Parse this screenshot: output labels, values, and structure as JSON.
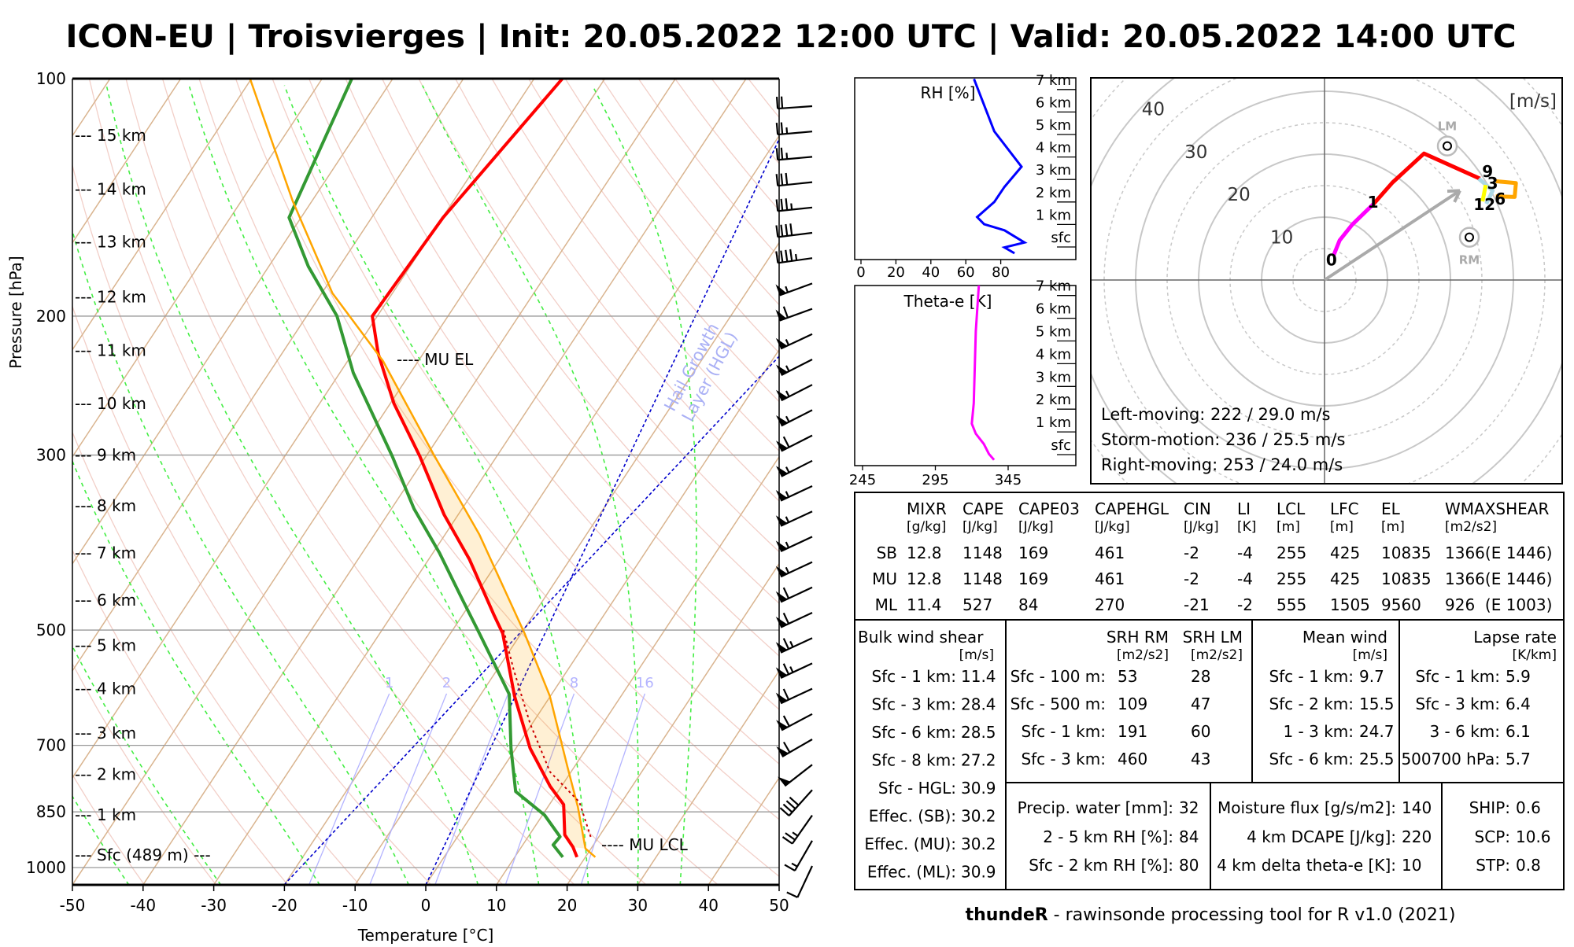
{
  "title": "ICON-EU | Troisvierges | Init: 20.05.2022 12:00 UTC | Valid: 20.05.2022 14:00 UTC",
  "chart_data": [
    {
      "type": "line",
      "name": "skew-t",
      "title": "",
      "xlabel": "Temperature [°C]",
      "ylabel": "Pressure [hPa]",
      "xlim": [
        -50,
        50
      ],
      "ylim": [
        1052,
        100
      ],
      "xticks": [
        -50,
        -40,
        -30,
        -20,
        -10,
        0,
        10,
        20,
        30,
        40,
        50
      ],
      "xtick_labels": [
        "-50",
        "-40",
        "-30",
        "-20",
        "-10",
        "0",
        "10",
        "20",
        "30",
        "40",
        "50"
      ],
      "yticks": [
        100,
        200,
        300,
        500,
        700,
        850,
        1000
      ],
      "ytick_labels": [
        "100",
        "200",
        "300",
        "500",
        "700",
        "850",
        "1000"
      ],
      "series": [
        {
          "name": "temperature",
          "color": "#ff0000",
          "points": [
            [
              100,
              -56.0
            ],
            [
              150,
              -59.9
            ],
            [
              200,
              -60.7
            ],
            [
              223,
              -56.4
            ],
            [
              258,
              -49.5
            ],
            [
              301,
              -40.9
            ],
            [
              357,
              -32.0
            ],
            [
              407,
              -24.2
            ],
            [
              479,
              -15.5
            ],
            [
              505,
              -12.6
            ],
            [
              606,
              -5.1
            ],
            [
              706,
              2.0
            ],
            [
              789,
              8.4
            ],
            [
              832,
              12.0
            ],
            [
              909,
              15.0
            ],
            [
              942,
              17.3
            ],
            [
              970,
              18.8
            ]
          ]
        },
        {
          "name": "dewpoint",
          "color": "#339933",
          "points": [
            [
              100,
              -85.8
            ],
            [
              150,
              -81.7
            ],
            [
              173,
              -74.4
            ],
            [
              200,
              -65.7
            ],
            [
              236,
              -58.1
            ],
            [
              301,
              -44.8
            ],
            [
              351,
              -36.8
            ],
            [
              399,
              -29.1
            ],
            [
              458,
              -21.4
            ],
            [
              505,
              -15.9
            ],
            [
              603,
              -6.0
            ],
            [
              706,
              -0.7
            ],
            [
              801,
              4.0
            ],
            [
              858,
              10.3
            ],
            [
              914,
              14.5
            ],
            [
              936,
              14.3
            ],
            [
              970,
              16.8
            ]
          ]
        },
        {
          "name": "mu-parcel",
          "color": "#ffa500",
          "points": [
            [
              100,
              -100.2
            ],
            [
              143,
              -82.7
            ],
            [
              187,
              -68.5
            ],
            [
              228,
              -55.0
            ],
            [
              299,
              -39.2
            ],
            [
              378,
              -25.2
            ],
            [
              505,
              -9.5
            ],
            [
              606,
              -0.1
            ],
            [
              745,
              9.0
            ],
            [
              837,
              14.2
            ],
            [
              946,
              19.2
            ],
            [
              970,
              21.4
            ]
          ]
        },
        {
          "name": "virtual-temperature",
          "color": "#cc0000",
          "points": [
            [
              500,
              -12.8
            ],
            [
              561,
              -7.7
            ],
            [
              657,
              -0.3
            ],
            [
              756,
              7.0
            ],
            [
              826,
              14.0
            ],
            [
              921,
              19.2
            ]
          ]
        }
      ],
      "height_labels": [
        {
          "label": "--- 15 km",
          "p": 118
        },
        {
          "label": "--- 14 km",
          "p": 138
        },
        {
          "label": "--- 13 km",
          "p": 161
        },
        {
          "label": "--- 12 km",
          "p": 189
        },
        {
          "label": "--- 11 km",
          "p": 221
        },
        {
          "label": "--- 10 km",
          "p": 258
        },
        {
          "label": "--- 9 km",
          "p": 300
        },
        {
          "label": "--- 8 km",
          "p": 348
        },
        {
          "label": "--- 7 km",
          "p": 399
        },
        {
          "label": "--- 6 km",
          "p": 458
        },
        {
          "label": "--- 5 km",
          "p": 523
        },
        {
          "label": "--- 4 km",
          "p": 593
        },
        {
          "label": "--- 3 km",
          "p": 675
        },
        {
          "label": "--- 2 km",
          "p": 762
        },
        {
          "label": "--- 1 km",
          "p": 857
        },
        {
          "label": "--- Sfc (489 m) ---",
          "p": 964
        }
      ],
      "annotations": [
        {
          "label": "---- MU EL",
          "p": 227
        },
        {
          "label": "---- MU LCL",
          "p": 936
        }
      ],
      "hgl_label": [
        "Hail Growth",
        "Layer (HGL)"
      ],
      "mixing_ratio_lines": [
        {
          "w": 1,
          "label": "1"
        },
        {
          "w": 2,
          "label": "2"
        },
        {
          "w": 4,
          "label": ""
        },
        {
          "w": 8,
          "label": "8"
        },
        {
          "w": 16,
          "label": "16"
        }
      ],
      "wind_barbs_kt": [
        {
          "dir": 266,
          "speed": 20
        },
        {
          "dir": 265,
          "speed": 25
        },
        {
          "dir": 265,
          "speed": 25
        },
        {
          "dir": 264,
          "speed": 30
        },
        {
          "dir": 264,
          "speed": 35
        },
        {
          "dir": 263,
          "speed": 40
        },
        {
          "dir": 262,
          "speed": 45
        },
        {
          "dir": 250,
          "speed": 55
        },
        {
          "dir": 250,
          "speed": 60
        },
        {
          "dir": 245,
          "speed": 55
        },
        {
          "dir": 243,
          "speed": 55
        },
        {
          "dir": 243,
          "speed": 55
        },
        {
          "dir": 243,
          "speed": 55
        },
        {
          "dir": 243,
          "speed": 60
        },
        {
          "dir": 243,
          "speed": 55
        },
        {
          "dir": 245,
          "speed": 55
        },
        {
          "dir": 245,
          "speed": 55
        },
        {
          "dir": 245,
          "speed": 55
        },
        {
          "dir": 245,
          "speed": 55
        },
        {
          "dir": 245,
          "speed": 60
        },
        {
          "dir": 245,
          "speed": 60
        },
        {
          "dir": 245,
          "speed": 65
        },
        {
          "dir": 245,
          "speed": 65
        },
        {
          "dir": 245,
          "speed": 60
        },
        {
          "dir": 242,
          "speed": 60
        },
        {
          "dir": 240,
          "speed": 60
        },
        {
          "dir": 232,
          "speed": 50
        },
        {
          "dir": 222,
          "speed": 40
        },
        {
          "dir": 215,
          "speed": 25
        },
        {
          "dir": 210,
          "speed": 15
        },
        {
          "dir": 205,
          "speed": 10
        }
      ]
    },
    {
      "type": "line",
      "name": "rh-profile",
      "title": "RH [%]",
      "xlim": [
        0,
        100
      ],
      "xticks": [
        0,
        20,
        40,
        60,
        80
      ],
      "xtick_labels": [
        "0",
        "20",
        "40",
        "60",
        "80"
      ],
      "height_ticks": [
        7,
        6,
        5,
        4,
        3,
        2,
        1,
        0
      ],
      "height_labels": [
        "7 km",
        "6 km",
        "5 km",
        "4 km",
        "3 km",
        "2 km",
        "1 km",
        "sfc"
      ],
      "color": "#0000ff",
      "points": [
        [
          64.7,
          7.4
        ],
        [
          76.3,
          5.07
        ],
        [
          91.9,
          3.5
        ],
        [
          82.1,
          2.6
        ],
        [
          76.3,
          1.93
        ],
        [
          66.5,
          1.26
        ],
        [
          70.5,
          0.94
        ],
        [
          82.1,
          0.67
        ],
        [
          93.6,
          0.13
        ],
        [
          82.1,
          -0.09
        ],
        [
          87.9,
          -0.35
        ]
      ]
    },
    {
      "type": "line",
      "name": "theta-e-profile",
      "title": "Theta-e [K]",
      "xlim": [
        240,
        392
      ],
      "xticks": [
        245,
        295,
        345
      ],
      "xtick_labels": [
        "245",
        "295",
        "345"
      ],
      "height_ticks": [
        7,
        6,
        5,
        4,
        3,
        2,
        1,
        0
      ],
      "height_labels": [
        "7 km",
        "6 km",
        "5 km",
        "4 km",
        "3 km",
        "2 km",
        "1 km",
        "sfc"
      ],
      "color": "#ff00ff",
      "points": [
        [
          324.9,
          7.4
        ],
        [
          322.8,
          5.36
        ],
        [
          321.4,
          2.19
        ],
        [
          320.0,
          1.29
        ],
        [
          322.8,
          0.85
        ],
        [
          328.3,
          0.4
        ],
        [
          331.8,
          -0.04
        ],
        [
          335.3,
          -0.3
        ]
      ]
    },
    {
      "type": "line",
      "name": "hodograph",
      "unit_label": "[m/s]",
      "rings": [
        10,
        20,
        30,
        40
      ],
      "ring_labels": [
        "10",
        "20",
        "30",
        "40"
      ],
      "segments": [
        {
          "name": "0-1 km",
          "color": "#ff00ff",
          "points": [
            [
              1.4,
              3.8
            ],
            [
              2.4,
              6.3
            ],
            [
              4.4,
              8.8
            ],
            [
              7.8,
              12.1
            ]
          ]
        },
        {
          "name": "1-3 km",
          "color": "#ff0000",
          "points": [
            [
              7.8,
              12.1
            ],
            [
              10.8,
              15.5
            ],
            [
              15.8,
              20.1
            ],
            [
              24.7,
              16.1
            ]
          ]
        },
        {
          "name": "3-6 km",
          "color": "#add8e6",
          "points": [
            [
              24.5,
              16.1
            ],
            [
              26.7,
              14.2
            ],
            [
              25.7,
              12.1
            ]
          ]
        },
        {
          "name": "6-9 km",
          "color": "#ffa500",
          "points": [
            [
              27.2,
              15.7
            ],
            [
              30.4,
              15.4
            ],
            [
              30.2,
              13.2
            ],
            [
              27.2,
              13.3
            ]
          ]
        },
        {
          "name": "9-12 km",
          "color": "#ffff00",
          "points": [
            [
              25.6,
              15.1
            ],
            [
              25.1,
              12.5
            ]
          ]
        }
      ],
      "height_markers": [
        {
          "label": "0",
          "u": 1.1,
          "v": 3.3
        },
        {
          "label": "1",
          "u": 7.7,
          "v": 12.5
        },
        {
          "label": "9",
          "u": 25.9,
          "v": 17.4
        },
        {
          "label": "3",
          "u": 26.7,
          "v": 15.5
        },
        {
          "label": "6",
          "u": 27.9,
          "v": 13.0
        },
        {
          "label": "12",
          "u": 25.4,
          "v": 12.1
        }
      ],
      "left_mover": {
        "label": "LM",
        "u": 19.5,
        "v": 21.3
      },
      "right_mover": {
        "label": "RM",
        "u": 23.0,
        "v": 6.8
      },
      "storm_motion": {
        "u": 21.5,
        "v": 14.2
      },
      "text_lines": [
        "Left-moving: 222 / 29.0 m/s",
        "Storm-motion: 236 / 25.5 m/s",
        "Right-moving: 253 / 24.0 m/s"
      ]
    }
  ],
  "indices": {
    "headers": [
      {
        "name": "MIXR",
        "unit": "[g/kg]"
      },
      {
        "name": "CAPE",
        "unit": "[J/kg]"
      },
      {
        "name": "CAPE03",
        "unit": "[J/kg]"
      },
      {
        "name": "CAPEHGL",
        "unit": "[J/kg]"
      },
      {
        "name": "CIN",
        "unit": "[J/kg]"
      },
      {
        "name": "LI",
        "unit": "[K]"
      },
      {
        "name": "LCL",
        "unit": "[m]"
      },
      {
        "name": "LFC",
        "unit": "[m]"
      },
      {
        "name": "EL",
        "unit": "[m]"
      },
      {
        "name": "WMAXSHEAR",
        "unit": "[m2/s2]"
      }
    ],
    "rows": [
      {
        "label": "SB",
        "values": [
          "12.8",
          "1148",
          "169",
          "461",
          "-2",
          "-4",
          "255",
          "425",
          "10835",
          "1366(E 1446)"
        ]
      },
      {
        "label": "MU",
        "values": [
          "12.8",
          "1148",
          "169",
          "461",
          "-2",
          "-4",
          "255",
          "425",
          "10835",
          "1366(E 1446)"
        ]
      },
      {
        "label": "ML",
        "values": [
          "11.4",
          "527",
          "84",
          "270",
          "-21",
          "-2",
          "555",
          "1505",
          "9560",
          "926  (E 1003)"
        ]
      }
    ]
  },
  "shear": {
    "title": "Bulk wind shear",
    "unit": "[m/s]",
    "rows": [
      {
        "label": "Sfc - 1 km:",
        "value": "11.4"
      },
      {
        "label": "Sfc - 3 km:",
        "value": "28.4"
      },
      {
        "label": "Sfc - 6 km:",
        "value": "28.5"
      },
      {
        "label": "Sfc - 8 km:",
        "value": "27.2"
      },
      {
        "label": "Sfc - HGL:",
        "value": "30.9"
      },
      {
        "label": "Effec. (SB):",
        "value": "30.2"
      },
      {
        "label": "Effec. (MU):",
        "value": "30.2"
      },
      {
        "label": "Effec. (ML):",
        "value": "30.9"
      }
    ]
  },
  "srh": {
    "title_rm": "SRH RM",
    "unit_rm": "[m2/s2]",
    "title_lm": "SRH LM",
    "unit_lm": "[m2/s2]",
    "rows": [
      {
        "label": "Sfc - 100 m:",
        "rm": "53",
        "lm": "28"
      },
      {
        "label": "Sfc - 500 m:",
        "rm": "109",
        "lm": "47"
      },
      {
        "label": "Sfc - 1 km:",
        "rm": "191",
        "lm": "60"
      },
      {
        "label": "Sfc - 3 km:",
        "rm": "460",
        "lm": "43"
      }
    ]
  },
  "mean_wind": {
    "title": "Mean wind",
    "unit": "[m/s]",
    "rows": [
      {
        "label": "Sfc - 1 km:",
        "value": "9.7"
      },
      {
        "label": "Sfc - 2 km:",
        "value": "15.5"
      },
      {
        "label": "1 - 3 km:",
        "value": "24.7"
      },
      {
        "label": "Sfc - 6 km:",
        "value": "25.5"
      }
    ]
  },
  "lapse_rate": {
    "title": "Lapse rate",
    "unit": "[K/km]",
    "rows": [
      {
        "label": "Sfc - 1 km:",
        "value": "5.9"
      },
      {
        "label": "Sfc - 3 km:",
        "value": "6.4"
      },
      {
        "label": "3 - 6 km:",
        "value": "6.1"
      },
      {
        "label": "500700 hPa:",
        "value": "5.7"
      }
    ]
  },
  "moisture": {
    "rows": [
      {
        "label": "Precip. water [mm]:",
        "value": "32"
      },
      {
        "label": "2 - 5 km RH [%]:",
        "value": "84"
      },
      {
        "label": "Sfc - 2 km RH [%]:",
        "value": "80"
      }
    ]
  },
  "flux": {
    "rows": [
      {
        "label": "Moisture flux [g/s/m2]:",
        "value": "140"
      },
      {
        "label": "4 km DCAPE [J/kg]:",
        "value": "220"
      },
      {
        "label": "4 km delta theta-e [K]:",
        "value": "10"
      }
    ]
  },
  "composite": {
    "rows": [
      {
        "label": "SHIP:",
        "value": "0.6"
      },
      {
        "label": "SCP:",
        "value": "10.6"
      },
      {
        "label": "STP:",
        "value": "0.8"
      }
    ]
  },
  "footer": {
    "bold": "thundeR",
    "rest": " - rawinsonde processing tool for R v1.0 (2021)"
  }
}
